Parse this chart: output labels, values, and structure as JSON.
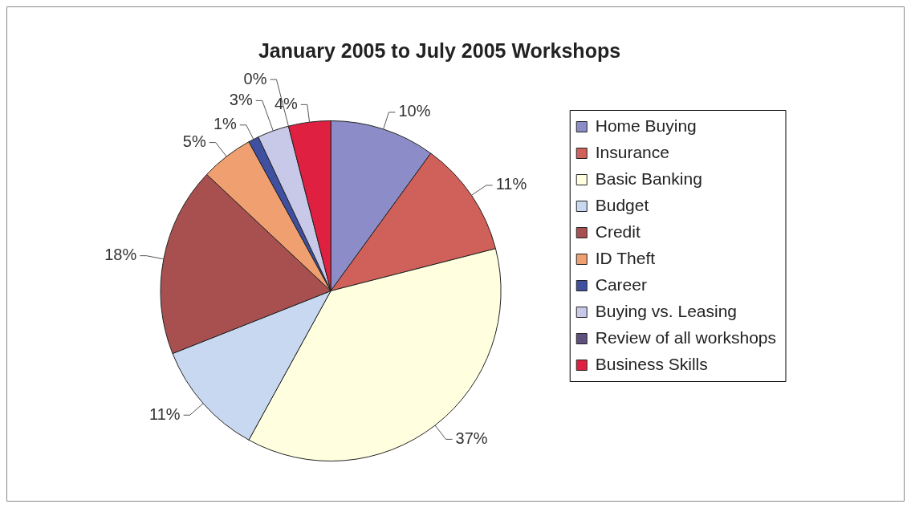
{
  "chart_data": {
    "type": "pie",
    "title": "January 2005 to July 2005 Workshops",
    "categories": [
      "Home Buying",
      "Insurance",
      "Basic Banking",
      "Budget",
      "Credit",
      "ID Theft",
      "Career",
      "Buying vs. Leasing",
      "Review of all workshops",
      "Business Skills"
    ],
    "values": [
      10,
      11,
      37,
      11,
      18,
      5,
      1,
      3,
      0,
      4
    ],
    "value_labels": [
      "10%",
      "11%",
      "37%",
      "11%",
      "18%",
      "5%",
      "1%",
      "3%",
      "0%",
      "4%"
    ],
    "colors": [
      "#8c8cc8",
      "#d0605a",
      "#ffffe0",
      "#c8d8f0",
      "#a85050",
      "#f0a070",
      "#4050a0",
      "#c8c8e8",
      "#605080",
      "#e02040"
    ],
    "legend": "right"
  }
}
